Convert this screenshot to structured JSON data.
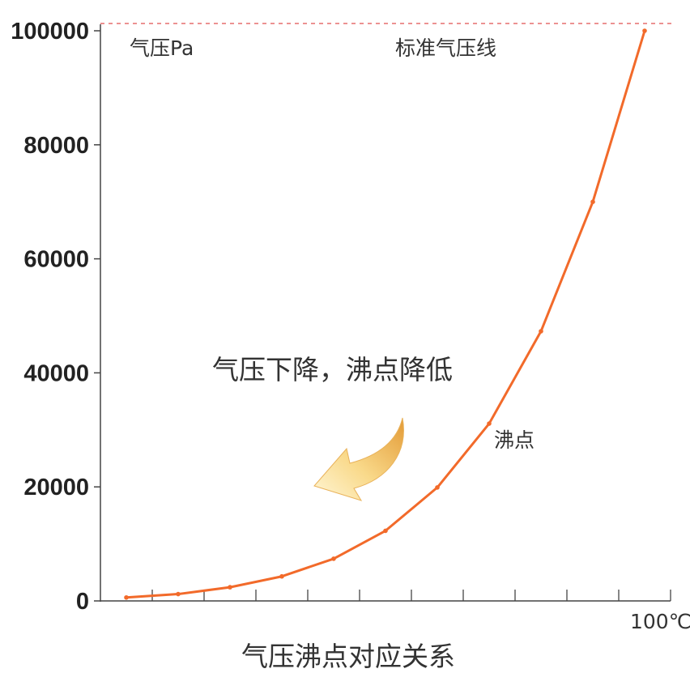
{
  "colors": {
    "line": "#f26a2a",
    "axis": "#444444",
    "reference_line": "#e05050",
    "arrow_light": "#fff3cc",
    "arrow_dark": "#e8a23c"
  },
  "chart_data": {
    "type": "line",
    "title": "气压沸点对应关系",
    "ylabel": "气压Pa",
    "xlabel": "",
    "x_end_label": "100℃",
    "reference_line_label": "标准气压线",
    "point_label": "沸点",
    "annotation": "气压下降，沸点降低",
    "ylim": [
      0,
      100000
    ],
    "yticks": [
      "0",
      "20000",
      "40000",
      "60000",
      "80000",
      "100000"
    ],
    "ytick_values": [
      0,
      20000,
      40000,
      60000,
      80000,
      100000
    ],
    "x_ticks": 11,
    "reference_value": 101325,
    "series": [
      {
        "values": [
          600,
          1200,
          2400,
          4300,
          7400,
          12300,
          19900,
          31100,
          47300,
          70000,
          100000
        ]
      }
    ]
  }
}
